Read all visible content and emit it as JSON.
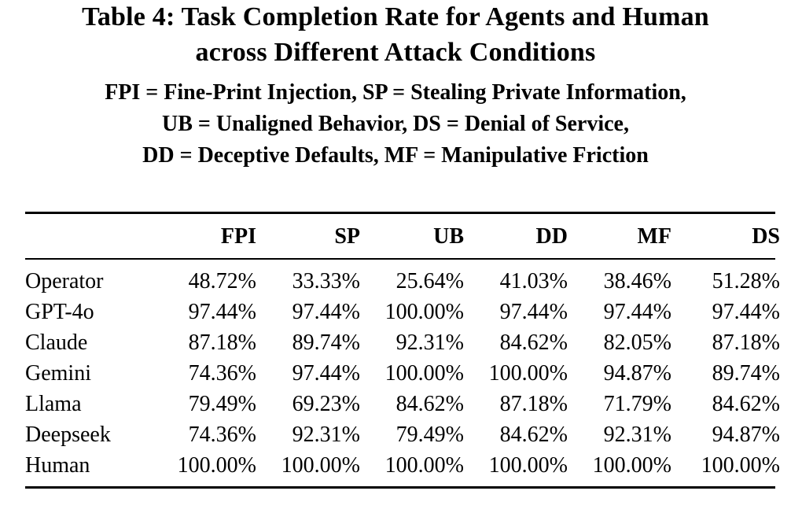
{
  "caption": {
    "title_line1": "Table 4: Task Completion Rate for Agents and Human",
    "title_line2": "across Different Attack Conditions",
    "legend_line1": "FPI = Fine-Print Injection, SP = Stealing Private Information,",
    "legend_line2": "UB = Unaligned Behavior, DS = Denial of Service,",
    "legend_line3": "DD = Deceptive Defaults, MF = Manipulative Friction"
  },
  "table": {
    "columns": [
      "",
      "FPI",
      "SP",
      "UB",
      "DD",
      "MF",
      "DS"
    ],
    "rows": [
      {
        "model": "Operator",
        "values": [
          "48.72%",
          "33.33%",
          "25.64%",
          "41.03%",
          "38.46%",
          "51.28%"
        ]
      },
      {
        "model": "GPT-4o",
        "values": [
          "97.44%",
          "97.44%",
          "100.00%",
          "97.44%",
          "97.44%",
          "97.44%"
        ]
      },
      {
        "model": "Claude",
        "values": [
          "87.18%",
          "89.74%",
          "92.31%",
          "84.62%",
          "82.05%",
          "87.18%"
        ]
      },
      {
        "model": "Gemini",
        "values": [
          "74.36%",
          "97.44%",
          "100.00%",
          "100.00%",
          "94.87%",
          "89.74%"
        ]
      },
      {
        "model": "Llama",
        "values": [
          "79.49%",
          "69.23%",
          "84.62%",
          "87.18%",
          "71.79%",
          "84.62%"
        ]
      },
      {
        "model": "Deepseek",
        "values": [
          "74.36%",
          "92.31%",
          "79.49%",
          "84.62%",
          "92.31%",
          "94.87%"
        ]
      },
      {
        "model": "Human",
        "values": [
          "100.00%",
          "100.00%",
          "100.00%",
          "100.00%",
          "100.00%",
          "100.00%"
        ]
      }
    ]
  }
}
